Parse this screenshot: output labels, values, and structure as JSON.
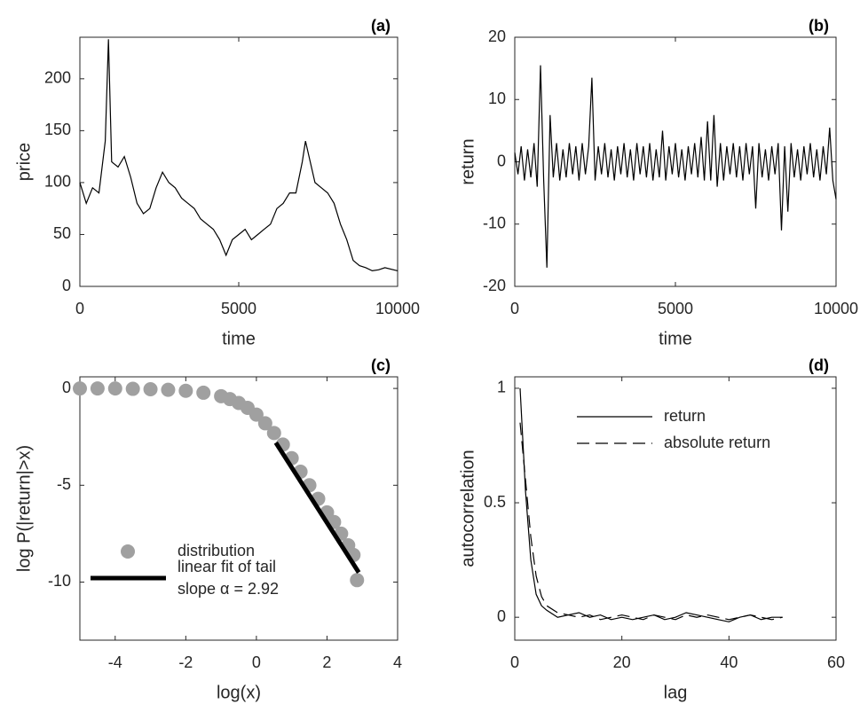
{
  "chart_data": [
    {
      "type": "line",
      "annotation": "(a)",
      "x_label": "time",
      "y_label": "price",
      "xlim": [
        0,
        10000
      ],
      "ylim": [
        0,
        240
      ],
      "xticks": [
        0,
        5000,
        10000
      ],
      "yticks": [
        0,
        50,
        100,
        150,
        200
      ],
      "series": [
        {
          "color": "#000000",
          "x": [
            0,
            200,
            400,
            600,
            800,
            900,
            1000,
            1200,
            1400,
            1600,
            1800,
            2000,
            2200,
            2400,
            2600,
            2800,
            3000,
            3200,
            3400,
            3600,
            3800,
            4000,
            4200,
            4400,
            4600,
            4800,
            5000,
            5200,
            5400,
            5600,
            5800,
            6000,
            6200,
            6400,
            6600,
            6800,
            7000,
            7100,
            7400,
            7600,
            7800,
            8000,
            8200,
            8400,
            8600,
            8800,
            9000,
            9200,
            9400,
            9600,
            10000
          ],
          "values": [
            100,
            80,
            95,
            90,
            140,
            238,
            120,
            115,
            125,
            105,
            80,
            70,
            75,
            95,
            110,
            100,
            95,
            85,
            80,
            75,
            65,
            60,
            55,
            45,
            30,
            45,
            50,
            55,
            45,
            50,
            55,
            60,
            75,
            80,
            90,
            90,
            120,
            140,
            100,
            95,
            90,
            80,
            60,
            45,
            25,
            20,
            18,
            15,
            16,
            18,
            15
          ]
        }
      ]
    },
    {
      "type": "line",
      "annotation": "(b)",
      "x_label": "time",
      "y_label": "return",
      "xlim": [
        0,
        10000
      ],
      "ylim": [
        -20,
        20
      ],
      "xticks": [
        0,
        5000,
        10000
      ],
      "yticks": [
        -20,
        -10,
        0,
        10,
        20
      ],
      "series": [
        {
          "color": "#000000",
          "x": [
            0,
            100,
            200,
            300,
            400,
            500,
            600,
            700,
            800,
            900,
            1000,
            1100,
            1200,
            1300,
            1400,
            1500,
            1600,
            1700,
            1800,
            1900,
            2000,
            2100,
            2200,
            2300,
            2400,
            2500,
            2600,
            2700,
            2800,
            2900,
            3000,
            3100,
            3200,
            3300,
            3400,
            3500,
            3600,
            3700,
            3800,
            3900,
            4000,
            4100,
            4200,
            4300,
            4400,
            4500,
            4600,
            4700,
            4800,
            4900,
            5000,
            5100,
            5200,
            5300,
            5400,
            5500,
            5600,
            5700,
            5800,
            5900,
            6000,
            6100,
            6200,
            6300,
            6400,
            6500,
            6600,
            6700,
            6800,
            6900,
            7000,
            7100,
            7200,
            7300,
            7400,
            7500,
            7600,
            7700,
            7800,
            7900,
            8000,
            8100,
            8200,
            8300,
            8400,
            8500,
            8600,
            8700,
            8800,
            8900,
            9000,
            9100,
            9200,
            9300,
            9400,
            9500,
            9600,
            9700,
            9800,
            9900,
            10000
          ],
          "values": [
            1.5,
            -2,
            2.5,
            -3,
            2,
            -2.5,
            3,
            -4,
            15.5,
            -3,
            -17,
            7.5,
            -2.5,
            3,
            -3,
            2,
            -2.5,
            3,
            -2,
            2.5,
            -3,
            3,
            -2,
            2.5,
            13.5,
            -3,
            2.5,
            -2,
            3,
            -2.5,
            2,
            -3,
            2.5,
            -2,
            3,
            -2.5,
            2,
            -3,
            3,
            -2,
            2.5,
            -2.5,
            3,
            -3,
            2,
            -2.5,
            5,
            -3,
            2.5,
            -2,
            3,
            -2.5,
            2,
            -3,
            2.5,
            -2,
            3,
            -2.5,
            4,
            -3,
            6.5,
            -3,
            7.5,
            -4,
            3,
            -3,
            2.5,
            -2,
            3,
            -2.5,
            2.5,
            -3,
            3,
            -2,
            2.5,
            -7.5,
            3,
            -2.5,
            2,
            -3,
            2.5,
            -2,
            3,
            -11,
            2.5,
            -8,
            3,
            -2.5,
            2,
            -3,
            2.5,
            -2,
            3,
            -2.5,
            2,
            -3,
            2.5,
            -2,
            5.5,
            -3,
            -6
          ]
        }
      ]
    },
    {
      "type": "scatter",
      "annotation": "(c)",
      "x_label": "log(x)",
      "y_label": "log P(|return|>x)",
      "xlim": [
        -5,
        4
      ],
      "ylim": [
        -13,
        0.6
      ],
      "xticks": [
        -4,
        -2,
        0,
        2,
        4
      ],
      "yticks": [
        -10,
        -5,
        0
      ],
      "legend": "lower left",
      "legend_note": "slope α = 2.92",
      "series": [
        {
          "name": "distribution",
          "color": "#a0a0a0",
          "x": [
            -5,
            -4.5,
            -4,
            -3.5,
            -3,
            -2.5,
            -2,
            -1.5,
            -1,
            -0.75,
            -0.5,
            -0.25,
            0,
            0.25,
            0.5,
            0.75,
            1,
            1.25,
            1.5,
            1.75,
            2,
            2.2,
            2.4,
            2.6,
            2.75,
            2.85
          ],
          "values": [
            0,
            0,
            0,
            -0.02,
            -0.04,
            -0.07,
            -0.12,
            -0.22,
            -0.4,
            -0.55,
            -0.75,
            -1,
            -1.35,
            -1.8,
            -2.3,
            -2.9,
            -3.6,
            -4.3,
            -5,
            -5.7,
            -6.4,
            -6.9,
            -7.5,
            -8.1,
            -8.6,
            -9.9
          ]
        },
        {
          "name": "linear fit of tail",
          "type": "line",
          "color": "#000000",
          "width": 5,
          "x": [
            0.55,
            2.9
          ],
          "values": [
            -2.8,
            -9.5
          ]
        }
      ]
    },
    {
      "type": "line",
      "annotation": "(d)",
      "x_label": "lag",
      "y_label": "autocorrelation",
      "xlim": [
        0,
        60
      ],
      "ylim": [
        -0.1,
        1.05
      ],
      "xticks": [
        0,
        20,
        40,
        60
      ],
      "yticks": [
        0,
        0.5,
        1
      ],
      "legend": "upper center",
      "series": [
        {
          "name": "return",
          "color": "#000000",
          "linestyle": "solid",
          "x": [
            1,
            2,
            3,
            4,
            5,
            6,
            8,
            10,
            12,
            14,
            16,
            18,
            20,
            22,
            24,
            26,
            28,
            30,
            32,
            34,
            36,
            38,
            40,
            42,
            44,
            46,
            48,
            50
          ],
          "values": [
            1,
            0.55,
            0.25,
            0.1,
            0.05,
            0.03,
            0,
            0.01,
            0.02,
            0,
            0.01,
            -0.01,
            0,
            -0.01,
            0,
            0.01,
            -0.01,
            0,
            0.02,
            0.01,
            0,
            -0.01,
            -0.02,
            0,
            0.01,
            -0.01,
            0,
            0
          ]
        },
        {
          "name": "absolute return",
          "color": "#000000",
          "linestyle": "dashed",
          "x": [
            1,
            2,
            3,
            4,
            5,
            6,
            8,
            10,
            12,
            14,
            16,
            18,
            20,
            22,
            24,
            26,
            28,
            30,
            32,
            34,
            36,
            38,
            40,
            42,
            44,
            46,
            48,
            50
          ],
          "values": [
            0.85,
            0.6,
            0.35,
            0.18,
            0.09,
            0.05,
            0.02,
            0.01,
            0,
            0.01,
            -0.01,
            0,
            0.01,
            0,
            -0.01,
            0.01,
            0,
            -0.01,
            0.01,
            0,
            0.01,
            0,
            -0.01,
            0,
            0.01,
            0,
            -0.01,
            0
          ]
        }
      ]
    }
  ]
}
